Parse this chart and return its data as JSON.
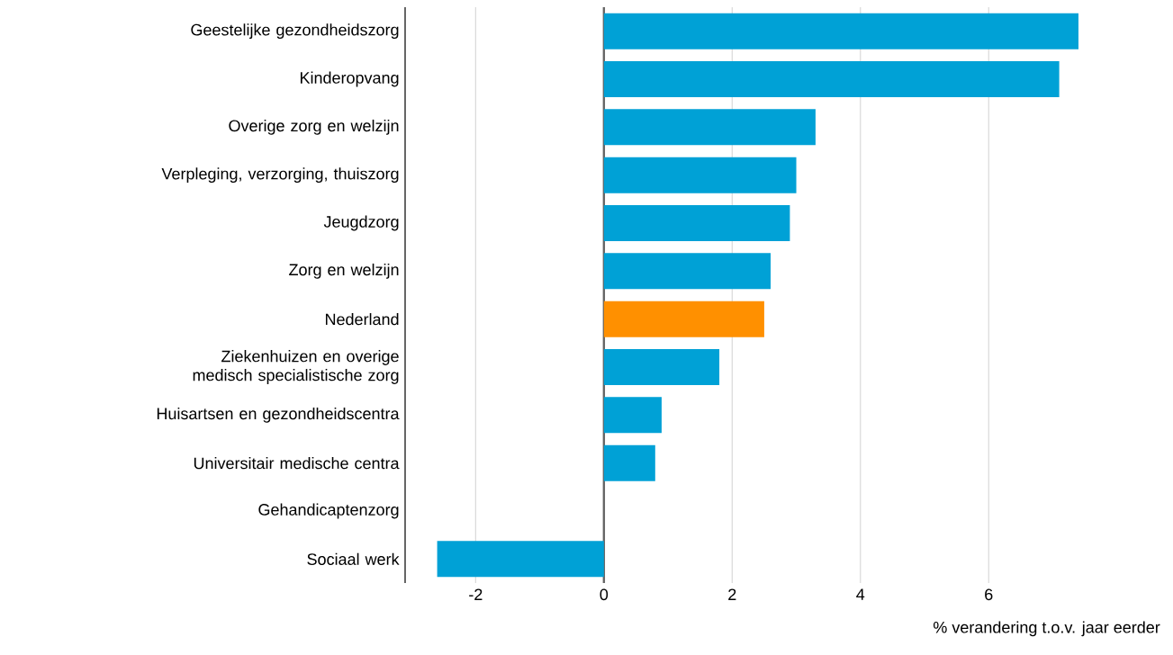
{
  "chart_data": {
    "type": "bar",
    "orientation": "horizontal",
    "categories": [
      "Geestelijke gezondheidszorg",
      "Kinderopvang",
      "Overige zorg en welzijn",
      "Verpleging, verzorging, thuiszorg",
      "Jeugdzorg",
      "Zorg en welzijn",
      "Nederland",
      "Ziekenhuizen en overige medisch specialistische zorg",
      "Huisartsen en gezondheidscentra",
      "Universitair medische centra",
      "Gehandicaptenzorg",
      "Sociaal werk"
    ],
    "values": [
      7.4,
      7.1,
      3.3,
      3.0,
      2.9,
      2.6,
      2.5,
      1.8,
      0.9,
      0.8,
      0,
      -2.6
    ],
    "colors": [
      "#00a1d6",
      "#00a1d6",
      "#00a1d6",
      "#00a1d6",
      "#00a1d6",
      "#00a1d6",
      "#ff9000",
      "#00a1d6",
      "#00a1d6",
      "#00a1d6",
      "#00a1d6",
      "#00a1d6"
    ],
    "xlabel": "% verandering t.o.v. jaar eerder",
    "xlim": [
      -3.1,
      7.4
    ],
    "xticks": [
      -2,
      0,
      2,
      4,
      6
    ],
    "grid": "x",
    "ref_lines": [
      {
        "axis": "x",
        "value": 0,
        "color": "#666666"
      }
    ]
  }
}
